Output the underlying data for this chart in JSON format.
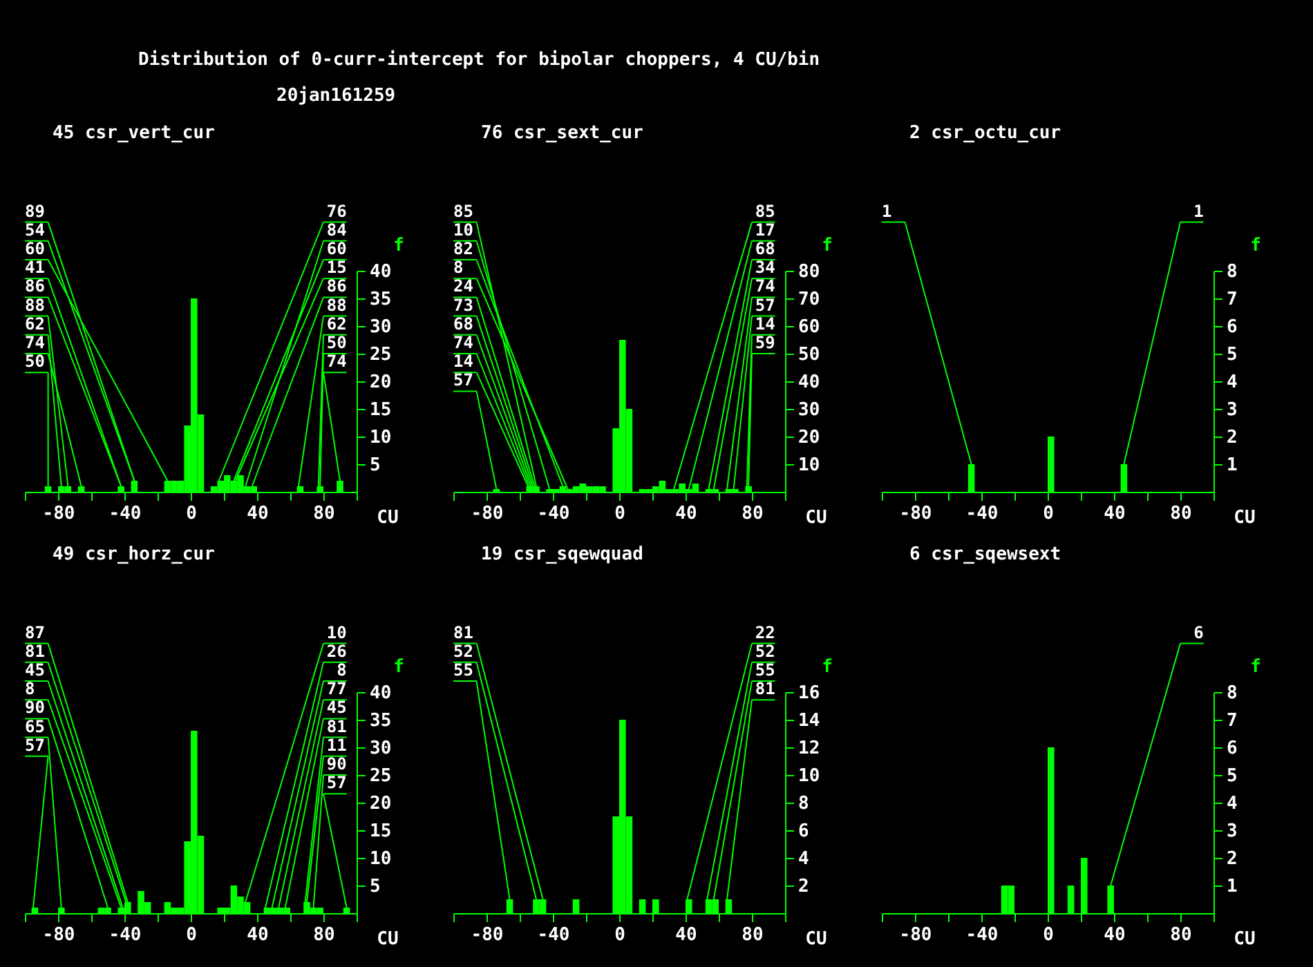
{
  "chart_data": [
    {
      "type": "other",
      "title": "Distribution of 0-curr-intercept for bipolar choppers, 4 CU/bin",
      "subtitle": "20jan161259"
    },
    {
      "type": "histogram",
      "title": "45 csr_vert_cur",
      "xlabel": "CU",
      "ylabel": "f",
      "color": "#00ff00",
      "bins": [
        -100,
        -96,
        -92,
        -88,
        -84,
        -80,
        -76,
        -72,
        -68,
        -64,
        -60,
        -56,
        -52,
        -48,
        -44,
        -40,
        -36,
        -32,
        -28,
        -24,
        -20,
        -16,
        -12,
        -8,
        -4,
        0,
        4,
        8,
        12,
        16,
        20,
        24,
        28,
        32,
        36,
        40,
        44,
        48,
        52,
        56,
        60,
        64,
        68,
        72,
        76,
        80,
        84,
        88,
        92,
        96,
        100
      ],
      "values": [
        0,
        0,
        0,
        1,
        0,
        1,
        1,
        0,
        1,
        0,
        0,
        0,
        0,
        0,
        1,
        0,
        2,
        0,
        0,
        0,
        0,
        2,
        2,
        2,
        12,
        35,
        14,
        0,
        1,
        2,
        3,
        2,
        3,
        1,
        1,
        0,
        0,
        0,
        0,
        0,
        0,
        1,
        0,
        0,
        1,
        0,
        0,
        2,
        0,
        0
      ],
      "xlim": [
        -100,
        100
      ],
      "xticks": [
        {
          "value": -100,
          "label": null
        },
        -80,
        {
          "value": -60,
          "label": null
        },
        -40,
        {
          "value": -20,
          "label": null
        },
        0,
        {
          "value": 20,
          "label": null
        },
        40,
        {
          "value": 60,
          "label": null
        },
        80,
        {
          "value": 100,
          "label": null
        }
      ],
      "ylim": [
        0,
        40
      ],
      "yticks": [
        5,
        10,
        15,
        20,
        25,
        30,
        35,
        40
      ],
      "annotations": [
        {
          "text": "89",
          "x": -34,
          "y": 2
        },
        {
          "text": "54",
          "x": -34,
          "y": 2
        },
        {
          "text": "60",
          "x": -14,
          "y": 2
        },
        {
          "text": "41",
          "x": -42,
          "y": 1
        },
        {
          "text": "86",
          "x": -42,
          "y": 1
        },
        {
          "text": "88",
          "x": -74,
          "y": 1
        },
        {
          "text": "62",
          "x": -78,
          "y": 1
        },
        {
          "text": "74",
          "x": -66,
          "y": 1
        },
        {
          "text": "50",
          "x": -86,
          "y": 1
        },
        {
          "text": "76",
          "x": 17,
          "y": 2
        },
        {
          "text": "84",
          "x": 33,
          "y": 1
        },
        {
          "text": "60",
          "x": 26,
          "y": 2
        },
        {
          "text": "15",
          "x": 27,
          "y": 2
        },
        {
          "text": "86",
          "x": 37,
          "y": 1
        },
        {
          "text": "88",
          "x": 65,
          "y": 1
        },
        {
          "text": "62",
          "x": 77,
          "y": 1
        },
        {
          "text": "50",
          "x": 78,
          "y": 1
        },
        {
          "text": "74",
          "x": 90,
          "y": 2
        }
      ]
    },
    {
      "type": "histogram",
      "title": "76 csr_sext_cur",
      "xlabel": "CU",
      "ylabel": "f",
      "color": "#00ff00",
      "bins": [
        -100,
        -96,
        -92,
        -88,
        -84,
        -80,
        -76,
        -72,
        -68,
        -64,
        -60,
        -56,
        -52,
        -48,
        -44,
        -40,
        -36,
        -32,
        -28,
        -24,
        -20,
        -16,
        -12,
        -8,
        -4,
        0,
        4,
        8,
        12,
        16,
        20,
        24,
        28,
        32,
        36,
        40,
        44,
        48,
        52,
        56,
        60,
        64,
        68,
        72,
        76,
        80,
        84,
        88,
        92,
        96,
        100
      ],
      "values": [
        0,
        0,
        0,
        0,
        0,
        0,
        1,
        0,
        0,
        0,
        0,
        2,
        2,
        0,
        1,
        1,
        2,
        1,
        2,
        3,
        2,
        2,
        2,
        0,
        23,
        55,
        30,
        0,
        1,
        1,
        2,
        4,
        1,
        1,
        3,
        1,
        3,
        0,
        1,
        1,
        0,
        1,
        1,
        0,
        2,
        0,
        0,
        0,
        0,
        0
      ],
      "xlim": [
        -100,
        100
      ],
      "xticks": [
        {
          "value": -100,
          "label": null
        },
        -80,
        {
          "value": -60,
          "label": null
        },
        -40,
        {
          "value": -20,
          "label": null
        },
        0,
        {
          "value": 20,
          "label": null
        },
        40,
        {
          "value": 60,
          "label": null
        },
        80,
        {
          "value": 100,
          "label": null
        }
      ],
      "ylim": [
        0,
        80
      ],
      "yticks": [
        10,
        20,
        30,
        40,
        50,
        60,
        70,
        80
      ],
      "annotations": [
        {
          "text": "85",
          "x": -50,
          "y": 2
        },
        {
          "text": "10",
          "x": -42,
          "y": 1
        },
        {
          "text": "82",
          "x": -34,
          "y": 2
        },
        {
          "text": "8",
          "x": -31,
          "y": 1
        },
        {
          "text": "24",
          "x": -51,
          "y": 2
        },
        {
          "text": "73",
          "x": -52,
          "y": 2
        },
        {
          "text": "68",
          "x": -53,
          "y": 2
        },
        {
          "text": "74",
          "x": -54,
          "y": 2
        },
        {
          "text": "14",
          "x": -55,
          "y": 2
        },
        {
          "text": "57",
          "x": -74,
          "y": 1
        },
        {
          "text": "85",
          "x": 33,
          "y": 1
        },
        {
          "text": "17",
          "x": 42,
          "y": 1
        },
        {
          "text": "68",
          "x": 54,
          "y": 1
        },
        {
          "text": "34",
          "x": 57,
          "y": 1
        },
        {
          "text": "74",
          "x": 65,
          "y": 1
        },
        {
          "text": "57",
          "x": 69,
          "y": 1
        },
        {
          "text": "14",
          "x": 77,
          "y": 2
        },
        {
          "text": "59",
          "x": 78,
          "y": 2
        }
      ]
    },
    {
      "type": "histogram",
      "title": "2 csr_octu_cur",
      "xlabel": "CU",
      "ylabel": "f",
      "color": "#00ff00",
      "bins": [
        -100,
        -96,
        -92,
        -88,
        -84,
        -80,
        -76,
        -72,
        -68,
        -64,
        -60,
        -56,
        -52,
        -48,
        -44,
        -40,
        -36,
        -32,
        -28,
        -24,
        -20,
        -16,
        -12,
        -8,
        -4,
        0,
        4,
        8,
        12,
        16,
        20,
        24,
        28,
        32,
        36,
        40,
        44,
        48,
        52,
        56,
        60,
        64,
        68,
        72,
        76,
        80,
        84,
        88,
        92,
        96,
        100
      ],
      "values": [
        0,
        0,
        0,
        0,
        0,
        0,
        0,
        0,
        0,
        0,
        0,
        0,
        0,
        1,
        0,
        0,
        0,
        0,
        0,
        0,
        0,
        0,
        0,
        0,
        0,
        2,
        0,
        0,
        0,
        0,
        0,
        0,
        0,
        0,
        0,
        0,
        1,
        0,
        0,
        0,
        0,
        0,
        0,
        0,
        0,
        0,
        0,
        0,
        0,
        0
      ],
      "xlim": [
        -100,
        100
      ],
      "xticks": [
        {
          "value": -100,
          "label": null
        },
        -80,
        {
          "value": -60,
          "label": null
        },
        -40,
        {
          "value": -20,
          "label": null
        },
        0,
        {
          "value": 20,
          "label": null
        },
        40,
        {
          "value": 60,
          "label": null
        },
        80,
        {
          "value": 100,
          "label": null
        }
      ],
      "ylim": [
        0,
        8
      ],
      "yticks": [
        1,
        2,
        3,
        4,
        5,
        6,
        7,
        8
      ],
      "annotations": [
        {
          "text": "1",
          "x": -46,
          "y": 1
        },
        {
          "text": "1",
          "x": 46,
          "y": 1
        }
      ]
    },
    {
      "type": "histogram",
      "title": "49 csr_horz_cur",
      "xlabel": "CU",
      "ylabel": "f",
      "color": "#00ff00",
      "bins": [
        -100,
        -96,
        -92,
        -88,
        -84,
        -80,
        -76,
        -72,
        -68,
        -64,
        -60,
        -56,
        -52,
        -48,
        -44,
        -40,
        -36,
        -32,
        -28,
        -24,
        -20,
        -16,
        -12,
        -8,
        -4,
        0,
        4,
        8,
        12,
        16,
        20,
        24,
        28,
        32,
        36,
        40,
        44,
        48,
        52,
        56,
        60,
        64,
        68,
        72,
        76,
        80,
        84,
        88,
        92,
        96,
        100
      ],
      "values": [
        0,
        1,
        0,
        0,
        0,
        1,
        0,
        0,
        0,
        0,
        0,
        1,
        1,
        0,
        1,
        2,
        0,
        4,
        2,
        0,
        0,
        2,
        1,
        1,
        13,
        33,
        14,
        0,
        0,
        1,
        1,
        5,
        3,
        2,
        0,
        0,
        1,
        1,
        1,
        1,
        0,
        0,
        2,
        1,
        1,
        0,
        0,
        0,
        1,
        0
      ],
      "xlim": [
        -100,
        100
      ],
      "xticks": [
        {
          "value": -100,
          "label": null
        },
        -80,
        {
          "value": -60,
          "label": null
        },
        -40,
        {
          "value": -20,
          "label": null
        },
        0,
        {
          "value": 20,
          "label": null
        },
        40,
        {
          "value": 60,
          "label": null
        },
        80,
        {
          "value": 100,
          "label": null
        }
      ],
      "ylim": [
        0,
        40
      ],
      "yticks": [
        5,
        10,
        15,
        20,
        25,
        30,
        35,
        40
      ],
      "annotations": [
        {
          "text": "87",
          "x": -38,
          "y": 2
        },
        {
          "text": "81",
          "x": -39,
          "y": 2
        },
        {
          "text": "45",
          "x": -41,
          "y": 1
        },
        {
          "text": "8",
          "x": -42,
          "y": 1
        },
        {
          "text": "90",
          "x": -50,
          "y": 1
        },
        {
          "text": "65",
          "x": -78,
          "y": 1
        },
        {
          "text": "57",
          "x": -95,
          "y": 1
        },
        {
          "text": "10",
          "x": 33,
          "y": 2
        },
        {
          "text": "26",
          "x": 45,
          "y": 1
        },
        {
          "text": "8",
          "x": 49,
          "y": 1
        },
        {
          "text": "77",
          "x": 53,
          "y": 1
        },
        {
          "text": "45",
          "x": 57,
          "y": 1
        },
        {
          "text": "81",
          "x": 69,
          "y": 2
        },
        {
          "text": "11",
          "x": 70,
          "y": 2
        },
        {
          "text": "90",
          "x": 74,
          "y": 1
        },
        {
          "text": "57",
          "x": 94,
          "y": 1
        }
      ]
    },
    {
      "type": "histogram",
      "title": "19 csr_sqewquad",
      "xlabel": "CU",
      "ylabel": "f",
      "color": "#00ff00",
      "bins": [
        -100,
        -96,
        -92,
        -88,
        -84,
        -80,
        -76,
        -72,
        -68,
        -64,
        -60,
        -56,
        -52,
        -48,
        -44,
        -40,
        -36,
        -32,
        -28,
        -24,
        -20,
        -16,
        -12,
        -8,
        -4,
        0,
        4,
        8,
        12,
        16,
        20,
        24,
        28,
        32,
        36,
        40,
        44,
        48,
        52,
        56,
        60,
        64,
        68,
        72,
        76,
        80,
        84,
        88,
        92,
        96,
        100
      ],
      "values": [
        0,
        0,
        0,
        0,
        0,
        0,
        0,
        0,
        1,
        0,
        0,
        0,
        1,
        1,
        0,
        0,
        0,
        0,
        1,
        0,
        0,
        0,
        0,
        0,
        7,
        14,
        7,
        0,
        1,
        0,
        1,
        0,
        0,
        0,
        0,
        1,
        0,
        0,
        1,
        1,
        0,
        1,
        0,
        0,
        0,
        0,
        0,
        0,
        0,
        0
      ],
      "xlim": [
        -100,
        100
      ],
      "xticks": [
        {
          "value": -100,
          "label": null
        },
        -80,
        {
          "value": -60,
          "label": null
        },
        -40,
        {
          "value": -20,
          "label": null
        },
        0,
        {
          "value": 20,
          "label": null
        },
        40,
        {
          "value": 60,
          "label": null
        },
        80,
        {
          "value": 100,
          "label": null
        }
      ],
      "ylim": [
        0,
        16
      ],
      "yticks": [
        2,
        4,
        6,
        8,
        10,
        12,
        14,
        16
      ],
      "annotations": [
        {
          "text": "81",
          "x": -46,
          "y": 1
        },
        {
          "text": "52",
          "x": -50,
          "y": 1
        },
        {
          "text": "55",
          "x": -66,
          "y": 1
        },
        {
          "text": "22",
          "x": 41,
          "y": 1
        },
        {
          "text": "52",
          "x": 53,
          "y": 1
        },
        {
          "text": "55",
          "x": 57,
          "y": 1
        },
        {
          "text": "81",
          "x": 65,
          "y": 1
        }
      ]
    },
    {
      "type": "histogram",
      "title": "6 csr_sqewsext",
      "xlabel": "CU",
      "ylabel": "f",
      "color": "#00ff00",
      "bins": [
        -100,
        -96,
        -92,
        -88,
        -84,
        -80,
        -76,
        -72,
        -68,
        -64,
        -60,
        -56,
        -52,
        -48,
        -44,
        -40,
        -36,
        -32,
        -28,
        -24,
        -20,
        -16,
        -12,
        -8,
        -4,
        0,
        4,
        8,
        12,
        16,
        20,
        24,
        28,
        32,
        36,
        40,
        44,
        48,
        52,
        56,
        60,
        64,
        68,
        72,
        76,
        80,
        84,
        88,
        92,
        96,
        100
      ],
      "values": [
        0,
        0,
        0,
        0,
        0,
        0,
        0,
        0,
        0,
        0,
        0,
        0,
        0,
        0,
        0,
        0,
        0,
        0,
        1,
        1,
        0,
        0,
        0,
        0,
        0,
        6,
        0,
        0,
        1,
        0,
        2,
        0,
        0,
        0,
        1,
        0,
        0,
        0,
        0,
        0,
        0,
        0,
        0,
        0,
        0,
        0,
        0,
        0,
        0,
        0
      ],
      "xlim": [
        -100,
        100
      ],
      "xticks": [
        {
          "value": -100,
          "label": null
        },
        -80,
        {
          "value": -60,
          "label": null
        },
        -40,
        {
          "value": -20,
          "label": null
        },
        0,
        {
          "value": 20,
          "label": null
        },
        40,
        {
          "value": 60,
          "label": null
        },
        80,
        {
          "value": 100,
          "label": null
        }
      ],
      "ylim": [
        0,
        8
      ],
      "yticks": [
        1,
        2,
        3,
        4,
        5,
        6,
        7,
        8
      ],
      "annotations": [
        {
          "text": "6",
          "x": 38,
          "y": 1
        }
      ]
    }
  ]
}
